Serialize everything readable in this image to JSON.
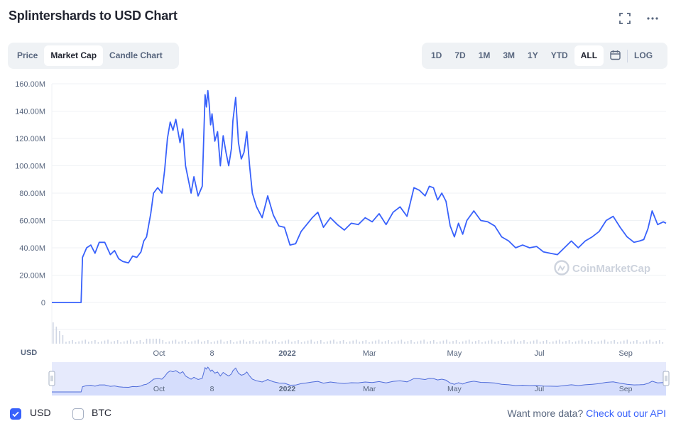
{
  "header": {
    "title": "Splintershards to USD Chart",
    "fullscreen_icon": "expand-icon",
    "more_icon": "ellipsis-icon"
  },
  "view_tabs": {
    "items": [
      "Price",
      "Market Cap",
      "Candle Chart"
    ],
    "active": "Market Cap"
  },
  "range_tabs": {
    "items": [
      "1D",
      "7D",
      "1M",
      "3M",
      "1Y",
      "YTD",
      "ALL"
    ],
    "active": "ALL",
    "calendar_icon": "calendar-icon",
    "log_label": "LOG"
  },
  "footer": {
    "usd_label": "USD",
    "usd_checked": true,
    "btc_label": "BTC",
    "btc_checked": false,
    "more_text": "Want more data?",
    "more_link": "Check out our API"
  },
  "colors": {
    "line": "#3861fb",
    "accent": "#3861fb",
    "grid": "#eff2f5",
    "text": "#58667e"
  },
  "chart_data": {
    "type": "line",
    "title": "",
    "ylabel": "",
    "xlabel": "",
    "currency_label": "USD",
    "watermark": "CoinMarketCap",
    "ylim": [
      0,
      160000000
    ],
    "yticks": [
      "160.00M",
      "140.00M",
      "120.00M",
      "100.00M",
      "80.00M",
      "60.00M",
      "40.00M",
      "20.00M",
      "0"
    ],
    "ytick_values": [
      160000000,
      140000000,
      120000000,
      100000000,
      80000000,
      60000000,
      40000000,
      20000000,
      0
    ],
    "xticks": [
      "Oct",
      "8",
      "2022",
      "Mar",
      "May",
      "Jul",
      "Sep"
    ],
    "xtick_dates": [
      "2021-10-01",
      "2021-11-08",
      "2022-01-01",
      "2022-03-01",
      "2022-05-01",
      "2022-07-01",
      "2022-09-01"
    ],
    "xlim": [
      "2021-07-16",
      "2022-09-30"
    ],
    "grid": true,
    "series": [
      {
        "x": [
          "2021-07-16",
          "2021-08-06",
          "2021-08-07",
          "2021-08-10",
          "2021-08-13",
          "2021-08-16",
          "2021-08-19",
          "2021-08-23",
          "2021-08-27",
          "2021-08-30",
          "2021-09-02",
          "2021-09-05",
          "2021-09-09",
          "2021-09-12",
          "2021-09-15",
          "2021-09-18",
          "2021-09-20",
          "2021-09-22",
          "2021-09-25",
          "2021-09-27",
          "2021-09-30",
          "2021-10-03",
          "2021-10-05",
          "2021-10-07",
          "2021-10-09",
          "2021-10-11",
          "2021-10-13",
          "2021-10-16",
          "2021-10-18",
          "2021-10-20",
          "2021-10-22",
          "2021-10-24",
          "2021-10-26",
          "2021-10-29",
          "2021-11-01",
          "2021-11-03",
          "2021-11-04",
          "2021-11-05",
          "2021-11-06",
          "2021-11-07",
          "2021-11-08",
          "2021-11-10",
          "2021-11-12",
          "2021-11-14",
          "2021-11-16",
          "2021-11-18",
          "2021-11-20",
          "2021-11-22",
          "2021-11-23",
          "2021-11-25",
          "2021-11-27",
          "2021-11-29",
          "2021-12-01",
          "2021-12-03",
          "2021-12-05",
          "2021-12-07",
          "2021-12-10",
          "2021-12-14",
          "2021-12-18",
          "2021-12-22",
          "2021-12-26",
          "2021-12-30",
          "2022-01-03",
          "2022-01-07",
          "2022-01-11",
          "2022-01-15",
          "2022-01-19",
          "2022-01-23",
          "2022-01-27",
          "2022-02-01",
          "2022-02-06",
          "2022-02-11",
          "2022-02-16",
          "2022-02-21",
          "2022-02-26",
          "2022-03-03",
          "2022-03-08",
          "2022-03-13",
          "2022-03-18",
          "2022-03-23",
          "2022-03-28",
          "2022-04-02",
          "2022-04-06",
          "2022-04-10",
          "2022-04-13",
          "2022-04-16",
          "2022-04-19",
          "2022-04-22",
          "2022-04-25",
          "2022-04-28",
          "2022-05-01",
          "2022-05-04",
          "2022-05-07",
          "2022-05-10",
          "2022-05-15",
          "2022-05-20",
          "2022-05-25",
          "2022-05-30",
          "2022-06-04",
          "2022-06-09",
          "2022-06-14",
          "2022-06-19",
          "2022-06-24",
          "2022-06-29",
          "2022-07-04",
          "2022-07-09",
          "2022-07-14",
          "2022-07-19",
          "2022-07-24",
          "2022-07-29",
          "2022-08-03",
          "2022-08-08",
          "2022-08-13",
          "2022-08-18",
          "2022-08-23",
          "2022-08-28",
          "2022-09-02",
          "2022-09-07",
          "2022-09-11",
          "2022-09-14",
          "2022-09-17",
          "2022-09-20",
          "2022-09-24",
          "2022-09-28",
          "2022-09-30"
        ],
        "y": [
          0,
          0,
          33000000,
          40000000,
          42000000,
          36000000,
          44000000,
          44000000,
          35000000,
          38000000,
          32000000,
          30000000,
          29000000,
          34000000,
          33000000,
          37000000,
          45000000,
          48000000,
          65000000,
          80000000,
          84000000,
          80000000,
          97000000,
          120000000,
          132000000,
          126000000,
          134000000,
          117000000,
          127000000,
          100000000,
          90000000,
          80000000,
          92000000,
          78000000,
          85000000,
          152000000,
          143000000,
          155000000,
          145000000,
          130000000,
          138000000,
          118000000,
          125000000,
          100000000,
          122000000,
          110000000,
          100000000,
          113000000,
          133000000,
          150000000,
          117000000,
          105000000,
          110000000,
          125000000,
          100000000,
          80000000,
          70000000,
          62000000,
          78000000,
          64000000,
          56000000,
          55000000,
          42000000,
          43000000,
          52000000,
          57000000,
          62000000,
          66000000,
          55000000,
          62000000,
          57000000,
          53000000,
          58000000,
          57000000,
          62000000,
          59000000,
          65000000,
          57000000,
          66000000,
          70000000,
          63000000,
          84000000,
          82000000,
          78000000,
          85000000,
          84000000,
          75000000,
          80000000,
          74000000,
          56000000,
          48000000,
          58000000,
          50000000,
          60000000,
          67000000,
          60000000,
          59000000,
          56000000,
          48000000,
          45000000,
          40000000,
          42000000,
          40000000,
          41000000,
          37000000,
          36000000,
          35000000,
          40000000,
          45000000,
          40000000,
          45000000,
          48000000,
          52000000,
          60000000,
          63000000,
          55000000,
          48000000,
          44000000,
          45000000,
          46000000,
          54000000,
          67000000,
          57000000,
          59000000,
          58000000
        ]
      }
    ]
  }
}
